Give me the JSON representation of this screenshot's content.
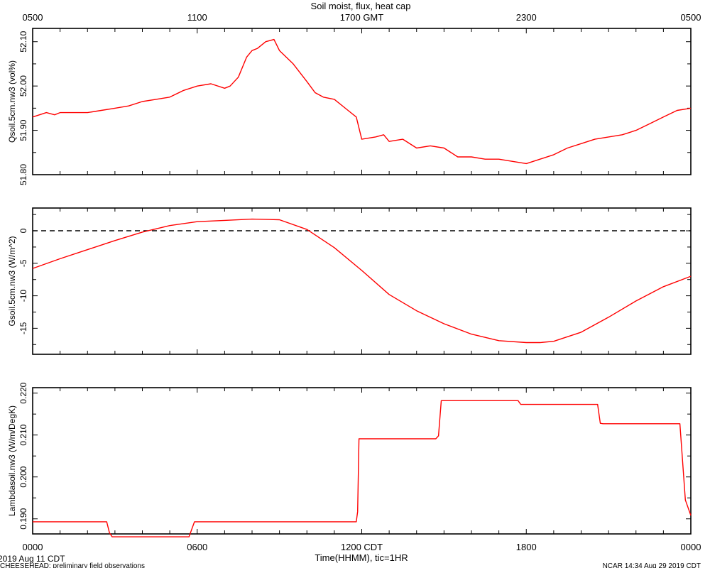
{
  "figure": {
    "title": "Soil moist, flux, heat cap",
    "xlabel": "Time(HHMM), tic=1HR",
    "start_date": "2019 Aug 11 CDT",
    "footer_left": "CHEESEHEAD: preliminary field observations",
    "footer_right": "NCAR 14:34 Aug 29 2019 CDT",
    "top_axis_labels": [
      "0500",
      "1100",
      "1700 GMT",
      "2300",
      "0500"
    ],
    "bottom_axis_labels": [
      "0000",
      "0600",
      "1200 CDT",
      "1800",
      "0000"
    ],
    "colors": {
      "series": "#ff0000",
      "axis": "#000000",
      "zero_line": "#000000"
    }
  },
  "chart_data": [
    {
      "type": "line",
      "ylabel": "Qsoil.5cm.nw3 (vol%)",
      "ylim": [
        51.8,
        52.13
      ],
      "yticks": [
        "51.80",
        "51.90",
        "52.00",
        "52.10"
      ],
      "xlim": [
        0,
        24
      ],
      "x": [
        0,
        0.5,
        0.8,
        1.0,
        1.5,
        2.0,
        2.5,
        3.0,
        3.5,
        4.0,
        4.5,
        5.0,
        5.5,
        6.0,
        6.5,
        7.0,
        7.2,
        7.5,
        7.8,
        8.0,
        8.2,
        8.5,
        8.8,
        9.0,
        9.5,
        10.0,
        10.3,
        10.6,
        11.0,
        11.5,
        11.8,
        12.0,
        12.5,
        12.8,
        13.0,
        13.5,
        14.0,
        14.5,
        15.0,
        15.5,
        16.0,
        16.5,
        17.0,
        17.5,
        18.0,
        18.5,
        19.0,
        19.5,
        20.0,
        20.5,
        21.0,
        21.5,
        22.0,
        22.5,
        23.0,
        23.5,
        24.0
      ],
      "y": [
        51.93,
        51.94,
        51.935,
        51.94,
        51.94,
        51.94,
        51.945,
        51.95,
        51.955,
        51.965,
        51.97,
        51.975,
        51.99,
        52.0,
        52.005,
        51.995,
        52.0,
        52.02,
        52.065,
        52.08,
        52.085,
        52.1,
        52.105,
        52.08,
        52.05,
        52.01,
        51.985,
        51.975,
        51.97,
        51.945,
        51.93,
        51.88,
        51.885,
        51.89,
        51.875,
        51.88,
        51.86,
        51.865,
        51.86,
        51.84,
        51.84,
        51.835,
        51.835,
        51.83,
        51.825,
        51.835,
        51.845,
        51.86,
        51.87,
        51.88,
        51.885,
        51.89,
        51.9,
        51.915,
        51.93,
        51.945,
        51.95
      ]
    },
    {
      "type": "line",
      "ylabel": "Gsoil.5cm.nw3 (W/m^2)",
      "ylim": [
        -19,
        3.5
      ],
      "yticks": [
        "-15",
        "-10",
        "-5",
        "0"
      ],
      "zero_line": true,
      "xlim": [
        0,
        24
      ],
      "x": [
        0,
        1,
        2,
        3,
        4,
        5,
        6,
        7,
        8,
        9,
        10,
        11,
        12,
        13,
        14,
        15,
        16,
        17,
        18,
        18.5,
        19,
        20,
        21,
        22,
        23,
        24
      ],
      "y": [
        -5.8,
        -4.3,
        -2.9,
        -1.5,
        -0.2,
        0.8,
        1.4,
        1.6,
        1.8,
        1.7,
        0.2,
        -2.6,
        -6.1,
        -9.8,
        -12.3,
        -14.3,
        -15.9,
        -16.9,
        -17.2,
        -17.2,
        -17.0,
        -15.6,
        -13.3,
        -10.8,
        -8.6,
        -7.0
      ]
    },
    {
      "type": "line",
      "ylabel": "Lambdasoil.nw3 (W/m/DegK)",
      "ylim": [
        0.1864,
        0.2213
      ],
      "yticks": [
        "0.190",
        "0.200",
        "0.210",
        "0.220"
      ],
      "xlim": [
        0,
        24
      ],
      "x": [
        0,
        2.7,
        2.8,
        2.9,
        5.7,
        5.9,
        6.0,
        11.8,
        11.85,
        11.9,
        14.7,
        14.8,
        14.9,
        17.7,
        17.8,
        20.6,
        20.7,
        20.8,
        23.6,
        23.8,
        24.0
      ],
      "y": [
        0.1893,
        0.1893,
        0.1867,
        0.1857,
        0.1857,
        0.1893,
        0.1893,
        0.1893,
        0.1917,
        0.2091,
        0.2091,
        0.2098,
        0.2182,
        0.2182,
        0.2173,
        0.2173,
        0.2128,
        0.2127,
        0.2127,
        0.1945,
        0.1908
      ]
    }
  ]
}
